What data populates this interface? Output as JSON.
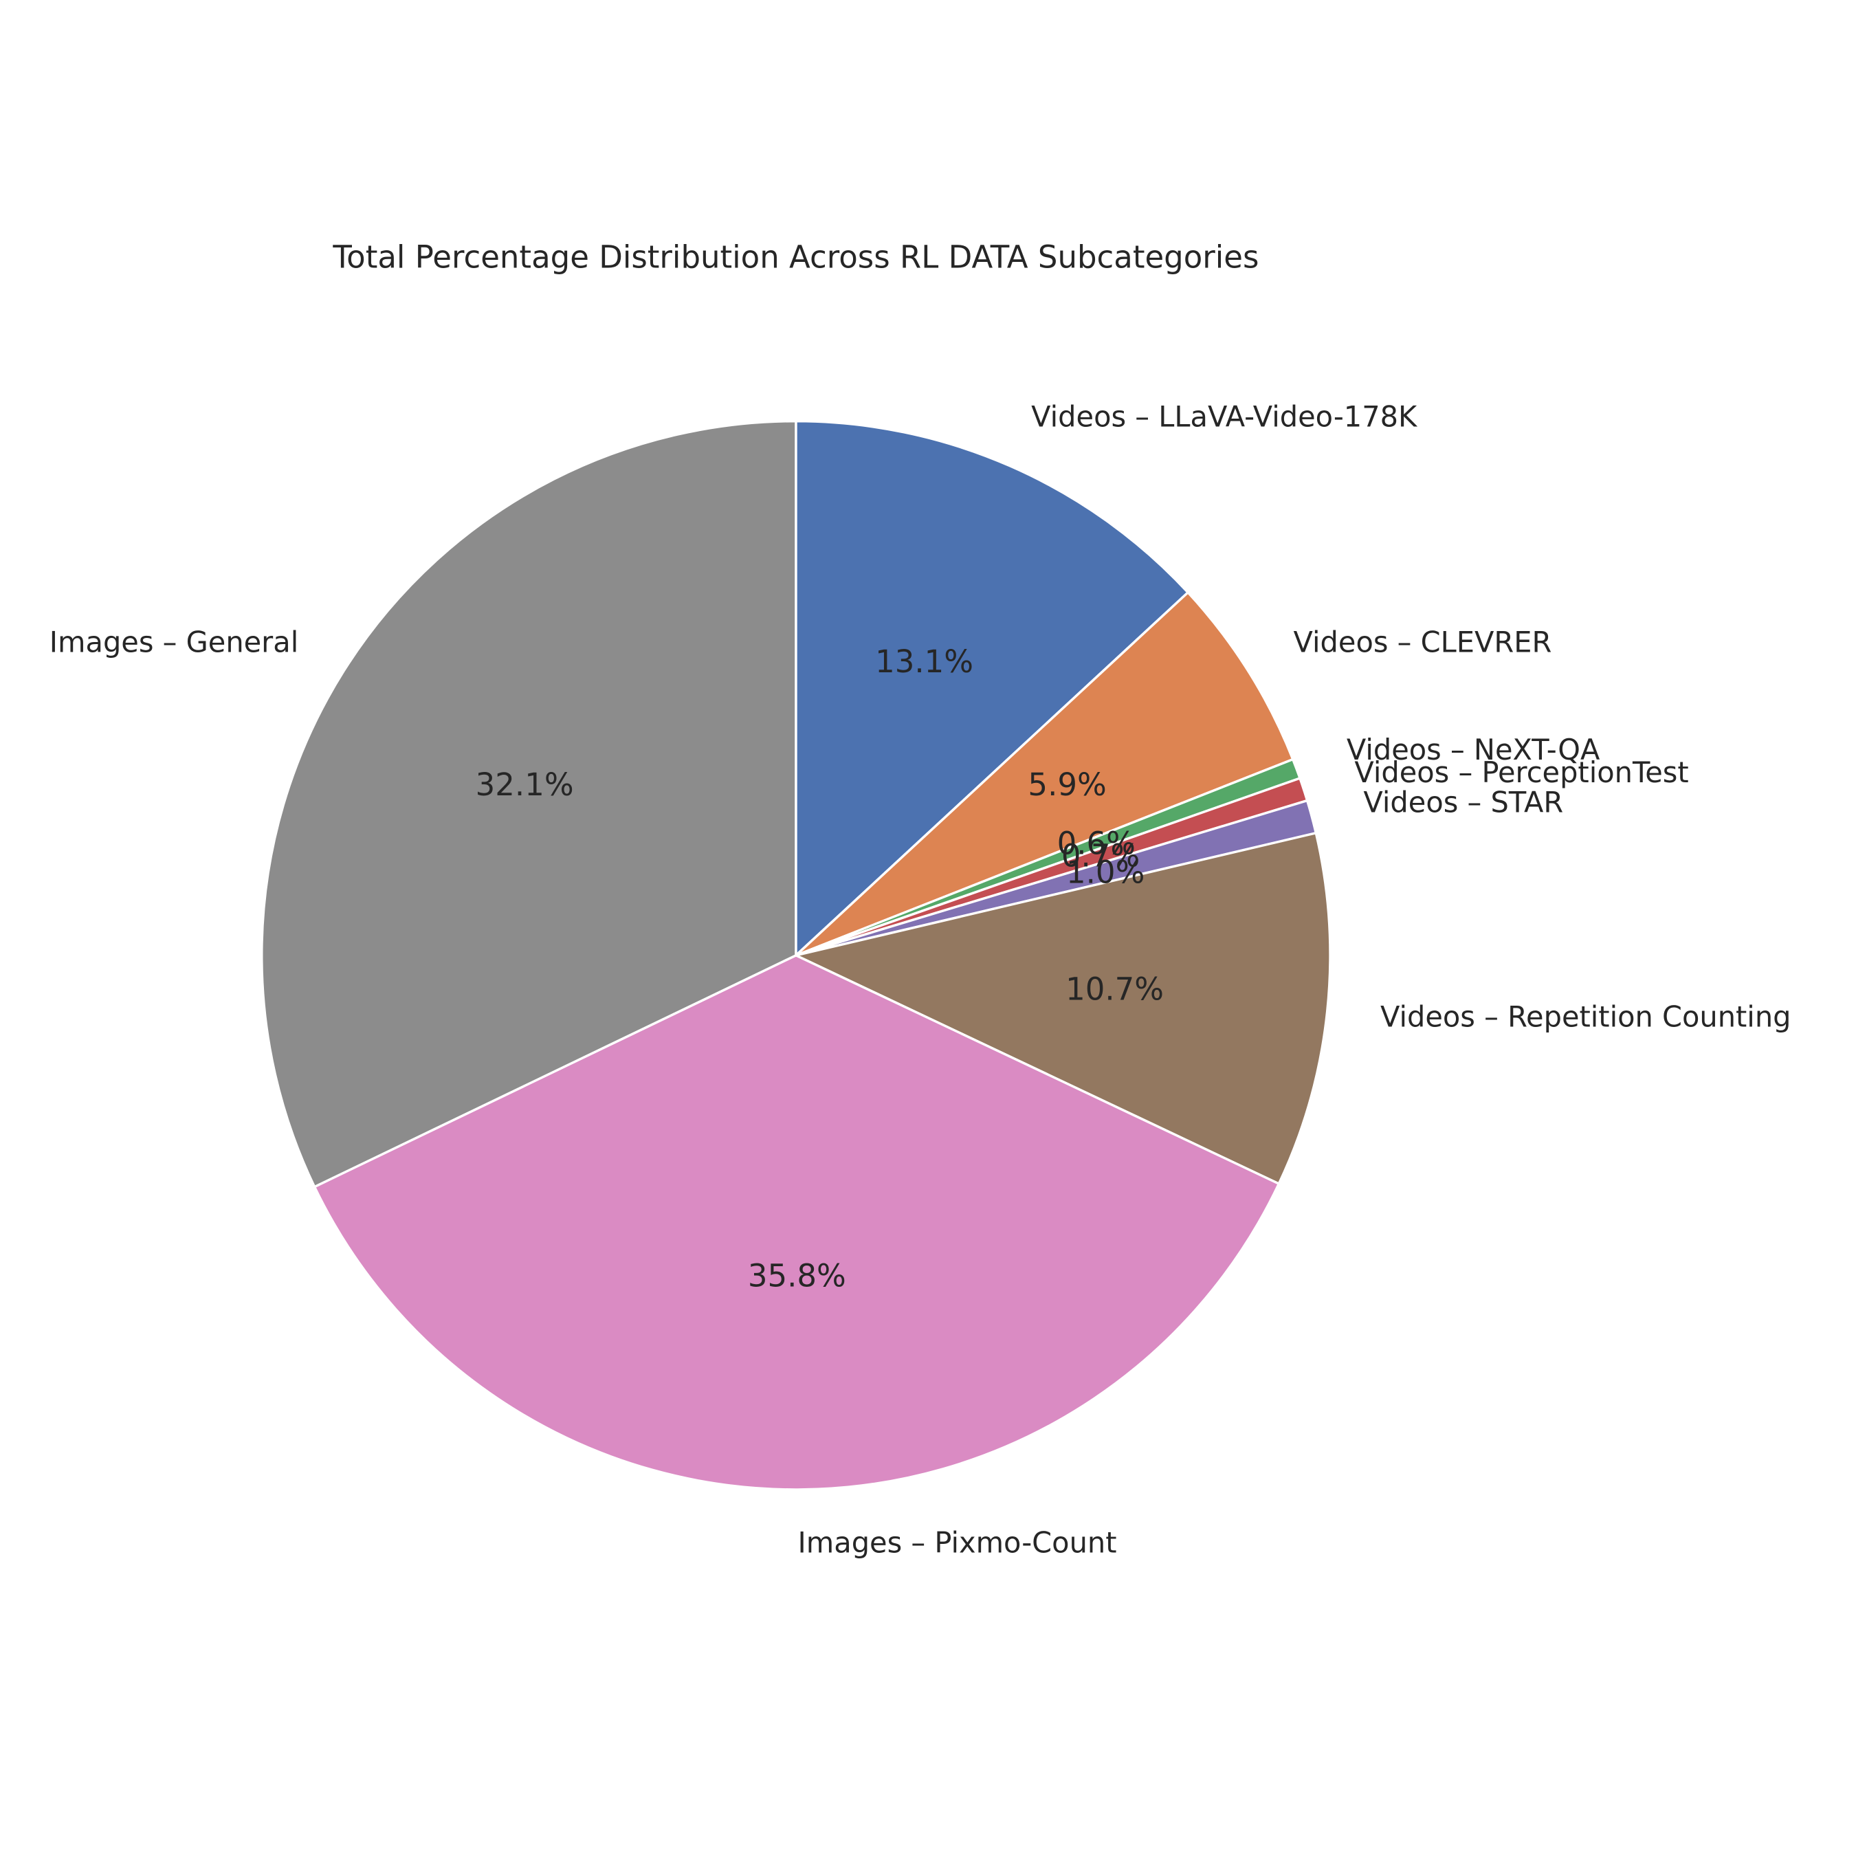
{
  "chart_data": {
    "type": "pie",
    "title": "Total Percentage Distribution Across RL DATA Subcategories",
    "start_angle": 90,
    "direction": "clockwise",
    "slices": [
      {
        "label": "Videos – LLaVA-Video-178K",
        "value": 13.1,
        "pct_label": "13.1%",
        "color": "#4c72b0"
      },
      {
        "label": "Videos – CLEVRER",
        "value": 5.9,
        "pct_label": "5.9%",
        "color": "#dd8452"
      },
      {
        "label": "Videos – NeXT-QA",
        "value": 0.6,
        "pct_label": "0.6%",
        "color": "#55a868"
      },
      {
        "label": "Videos – PerceptionTest",
        "value": 0.7,
        "pct_label": "0.7%",
        "color": "#c44e52"
      },
      {
        "label": "Videos – STAR",
        "value": 1.0,
        "pct_label": "1.0%",
        "color": "#8172b3"
      },
      {
        "label": "Videos – Repetition Counting",
        "value": 10.7,
        "pct_label": "10.7%",
        "color": "#937860"
      },
      {
        "label": "Images – Pixmo-Count",
        "value": 35.8,
        "pct_label": "35.8%",
        "color": "#da8bc3"
      },
      {
        "label": "Images – General",
        "value": 32.1,
        "pct_label": "32.1%",
        "color": "#8c8c8c"
      }
    ]
  }
}
